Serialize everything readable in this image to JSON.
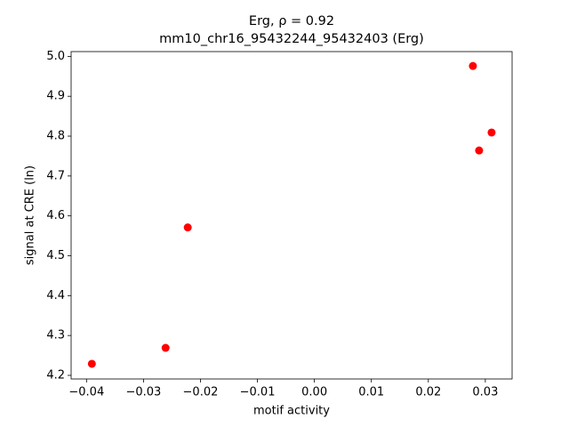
{
  "chart_data": {
    "type": "scatter",
    "title": "Erg, ρ = 0.92",
    "subtitle": "mm10_chr16_95432244_95432403 (Erg)",
    "x_label": "motif activity",
    "y_label": "signal at CRE (ln)",
    "color": "#ff0000",
    "grid": false,
    "x": [
      -0.03906,
      -0.02612,
      -0.02223,
      0.02782,
      0.02891,
      0.0311
    ],
    "values": [
      4.229,
      4.269,
      4.571,
      4.976,
      4.764,
      4.809
    ],
    "xlim": [
      -0.0427,
      0.0347
    ],
    "ylim": [
      4.191,
      5.012
    ],
    "xticks": [
      {
        "value": -0.04,
        "label": "−0.04"
      },
      {
        "value": -0.03,
        "label": "−0.03"
      },
      {
        "value": -0.02,
        "label": "−0.02"
      },
      {
        "value": -0.01,
        "label": "−0.01"
      },
      {
        "value": 0,
        "label": "0.00"
      },
      0.01,
      0.02,
      0.03
    ],
    "yticks": [
      4.2,
      4.3,
      4.4,
      4.5,
      4.6,
      4.7,
      4.8,
      4.9,
      {
        "value": 5,
        "label": "5.0"
      }
    ]
  }
}
